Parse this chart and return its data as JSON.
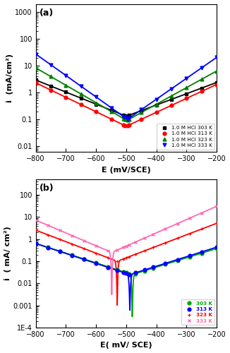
{
  "panel_a": {
    "title": "(a)",
    "xlabel": "E (mV/SCE)",
    "ylabel": "i  (mA/cm²)",
    "xlim": [
      -800,
      -200
    ],
    "ylim": [
      0.006,
      2000
    ],
    "yticks": [
      0.01,
      0.1,
      1,
      10,
      100,
      1000
    ],
    "ytick_labels": [
      "0.01",
      "0.1",
      "1",
      "10",
      "100",
      "1000"
    ],
    "xticks": [
      -800,
      -700,
      -600,
      -500,
      -400,
      -300,
      -200
    ],
    "curves": [
      {
        "label": "1.0 M HCl 303 K",
        "color": "black",
        "marker": "s",
        "Ecorr": -500,
        "icorr": 0.13,
        "ba": 0.0042,
        "bc": 0.0045
      },
      {
        "label": "1.0 M HCl 313 K",
        "color": "red",
        "marker": "o",
        "Ecorr": -500,
        "icorr": 0.055,
        "ba": 0.0052,
        "bc": 0.0054
      },
      {
        "label": "1.0 M HCl 323 K",
        "color": "green",
        "marker": "^",
        "Ecorr": -498,
        "icorr": 0.09,
        "ba": 0.0062,
        "bc": 0.0065
      },
      {
        "label": "1.0 M HCl 333 K",
        "color": "blue",
        "marker": "v",
        "Ecorr": -496,
        "icorr": 0.1,
        "ba": 0.0078,
        "bc": 0.008
      }
    ]
  },
  "panel_b": {
    "title": "(b)",
    "xlabel": "E( mV/ SCE)",
    "ylabel": "i  ( mA/ cm²)",
    "xlim": [
      -800,
      -200
    ],
    "ylim": [
      0.0001,
      500
    ],
    "yticks": [
      0.0001,
      0.001,
      0.01,
      0.1,
      1,
      10,
      100
    ],
    "ytick_labels": [
      "1E-4",
      "0.001",
      "0.01",
      "0.1",
      "1",
      "10",
      "100"
    ],
    "xticks": [
      -800,
      -700,
      -600,
      -500,
      -400,
      -300,
      -200
    ],
    "curves": [
      {
        "label": "303 K",
        "color": "#00AA00",
        "marker": "o",
        "Ecorr": -480,
        "icorr": 0.025,
        "ba": 0.0042,
        "bc": 0.0044,
        "min_i": 0.0003,
        "dip_E": -480,
        "dip_i": 0.0003
      },
      {
        "label": "313 K",
        "color": "blue",
        "marker": "o",
        "Ecorr": -488,
        "icorr": 0.025,
        "ba": 0.0043,
        "bc": 0.0045,
        "min_i": 0.0006,
        "dip_E": -490,
        "dip_i": 0.0006
      },
      {
        "label": "323 K",
        "color": "red",
        "marker": "+",
        "Ecorr": -530,
        "icorr": 0.1,
        "ba": 0.0052,
        "bc": 0.0052,
        "min_i": 0.001,
        "dip_E": -530,
        "dip_i": 0.001
      },
      {
        "label": "333 K",
        "color": "#FF69B4",
        "marker": "x",
        "Ecorr": -548,
        "icorr": 0.25,
        "ba": 0.006,
        "bc": 0.0058,
        "min_i": 0.003,
        "dip_E": -548,
        "dip_i": 0.003
      }
    ]
  }
}
